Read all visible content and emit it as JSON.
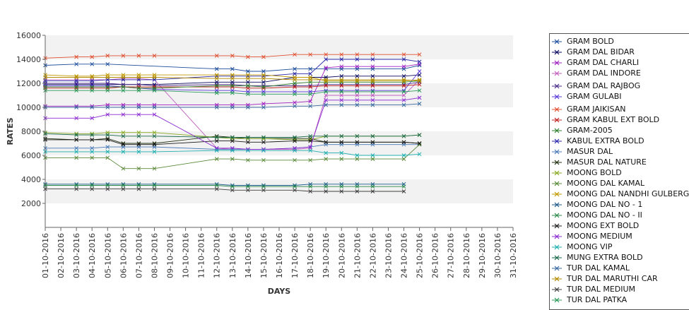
{
  "chart_data": {
    "type": "line",
    "xlabel": "DAYS",
    "ylabel": "RATES",
    "ylim": [
      0,
      16000
    ],
    "yticks": [
      2000,
      4000,
      6000,
      8000,
      10000,
      12000,
      14000,
      16000
    ],
    "grid": "alternating horizontal bands",
    "legend_position": "right",
    "x": [
      "01-10-2016",
      "02-10-2016",
      "03-10-2016",
      "04-10-2016",
      "05-10-2016",
      "06-10-2016",
      "07-10-2016",
      "08-10-2016",
      "09-10-2016",
      "10-10-2016",
      "11-10-2016",
      "12-10-2016",
      "13-10-2016",
      "14-10-2016",
      "15-10-2016",
      "16-10-2016",
      "17-10-2016",
      "18-10-2016",
      "19-10-2016",
      "20-10-2016",
      "21-10-2016",
      "22-10-2016",
      "23-10-2016",
      "24-10-2016",
      "25-10-2016",
      "26-10-2016",
      "27-10-2016",
      "28-10-2016",
      "29-10-2016",
      "30-10-2016",
      "31-10-2016"
    ],
    "series": [
      {
        "name": "GRAM BOLD",
        "color": "#1f4e9c",
        "values": [
          13500,
          null,
          13600,
          13600,
          13600,
          null,
          null,
          null,
          null,
          null,
          null,
          13200,
          13200,
          13000,
          13000,
          null,
          13200,
          13200,
          13200,
          13200,
          13200,
          13200,
          null,
          13200,
          13500,
          null,
          null,
          null,
          null,
          null,
          null
        ]
      },
      {
        "name": "GRAM DAL BIDAR",
        "color": "#0a0a60",
        "values": [
          11900,
          null,
          11900,
          11900,
          11900,
          11900,
          11900,
          11900,
          null,
          null,
          null,
          12100,
          12100,
          12100,
          12100,
          null,
          12500,
          12500,
          12500,
          12600,
          12600,
          12600,
          null,
          12600,
          12700,
          null,
          null,
          null,
          null,
          null,
          null
        ]
      },
      {
        "name": "GRAM DAL CHARLI",
        "color": "#a020c0",
        "values": [
          10100,
          null,
          10100,
          10100,
          10200,
          10200,
          10200,
          10200,
          null,
          null,
          null,
          10200,
          10200,
          10200,
          10300,
          null,
          10400,
          10500,
          13300,
          13400,
          13400,
          13400,
          null,
          13400,
          13600,
          null,
          null,
          null,
          null,
          null,
          null
        ]
      },
      {
        "name": "GRAM DAL INDORE",
        "color": "#c060c0",
        "values": [
          12300,
          null,
          12300,
          12300,
          12300,
          12400,
          12400,
          12300,
          null,
          null,
          null,
          6600,
          6500,
          6500,
          6500,
          null,
          6500,
          6600,
          11000,
          11000,
          11000,
          11000,
          null,
          11000,
          12300,
          null,
          null,
          null,
          null,
          null,
          null
        ]
      },
      {
        "name": "GRAM DAL RAJBOG",
        "color": "#4a2a8a",
        "values": [
          12000,
          null,
          12000,
          12000,
          12000,
          11900,
          11900,
          11800,
          null,
          null,
          null,
          11900,
          11900,
          11800,
          11800,
          null,
          11800,
          11800,
          11900,
          11900,
          11900,
          11900,
          null,
          11900,
          12100,
          null,
          null,
          null,
          null,
          null,
          null
        ]
      },
      {
        "name": "GRAM GULABI",
        "color": "#5a3ad8",
        "values": [
          11800,
          null,
          11800,
          11800,
          11800,
          11700,
          11600,
          11500,
          null,
          null,
          null,
          11400,
          11400,
          11300,
          11300,
          null,
          11300,
          11300,
          11400,
          11400,
          11400,
          11400,
          null,
          11400,
          13000,
          null,
          null,
          null,
          null,
          null,
          null
        ]
      },
      {
        "name": "GRAM JAIKISAN",
        "color": "#e05030",
        "values": [
          14100,
          null,
          14200,
          14200,
          14300,
          14300,
          14300,
          14300,
          null,
          null,
          null,
          14300,
          14300,
          14200,
          14200,
          null,
          14400,
          14400,
          14400,
          14400,
          14400,
          14400,
          null,
          14400,
          14400,
          null,
          null,
          null,
          null,
          null,
          null
        ]
      },
      {
        "name": "GRAM KABUL EXT BOLD",
        "color": "#c02020",
        "values": [
          11600,
          null,
          11600,
          11600,
          11600,
          11700,
          11700,
          11700,
          null,
          null,
          null,
          11700,
          11700,
          11600,
          11600,
          null,
          11700,
          11700,
          11800,
          11800,
          11800,
          11800,
          null,
          11800,
          11900,
          null,
          null,
          null,
          null,
          null,
          null
        ]
      },
      {
        "name": "GRAM-2005",
        "color": "#2f7f2f",
        "values": [
          11700,
          null,
          11700,
          11700,
          11700,
          11700,
          11600,
          11600,
          null,
          null,
          null,
          11800,
          11800,
          11800,
          11700,
          null,
          12000,
          12100,
          12100,
          12100,
          12100,
          12100,
          null,
          12100,
          12200,
          null,
          null,
          null,
          null,
          null,
          null
        ]
      },
      {
        "name": "KABUL EXTRA BOLD",
        "color": "#2a2aa8",
        "values": [
          12200,
          null,
          12200,
          12200,
          12300,
          12300,
          12300,
          12300,
          null,
          null,
          null,
          12600,
          12600,
          12600,
          12600,
          null,
          12800,
          12800,
          14000,
          14000,
          14000,
          14000,
          null,
          14000,
          13800,
          null,
          null,
          null,
          null,
          null,
          null
        ]
      },
      {
        "name": "MASUR DAL",
        "color": "#4a7ab8",
        "values": [
          6600,
          null,
          6600,
          6600,
          6700,
          6700,
          6700,
          6700,
          null,
          null,
          null,
          6500,
          6500,
          6500,
          6500,
          null,
          6600,
          6700,
          6900,
          6900,
          6900,
          6900,
          null,
          6900,
          6900,
          null,
          null,
          null,
          null,
          null,
          null
        ]
      },
      {
        "name": "MASUR DAL NATURE",
        "color": "#203010",
        "values": [
          7400,
          null,
          7300,
          7300,
          7400,
          7000,
          7000,
          7000,
          null,
          null,
          null,
          7600,
          7500,
          7400,
          7400,
          null,
          7400,
          7400,
          7100,
          7100,
          7100,
          7100,
          null,
          7100,
          7000,
          null,
          null,
          null,
          null,
          null,
          null
        ]
      },
      {
        "name": "MOONG BOLD",
        "color": "#88aa22",
        "values": [
          7900,
          null,
          7800,
          7800,
          7900,
          7900,
          7900,
          7900,
          null,
          null,
          null,
          7500,
          7400,
          7400,
          7400,
          null,
          7300,
          7300,
          7600,
          7600,
          7600,
          7600,
          null,
          7600,
          7700,
          null,
          null,
          null,
          null,
          null,
          null
        ]
      },
      {
        "name": "MOONG DAL KAMAL",
        "color": "#5a8a3a",
        "values": [
          5800,
          null,
          5800,
          5800,
          5800,
          4900,
          4900,
          4900,
          null,
          null,
          null,
          5700,
          5700,
          5600,
          5600,
          null,
          5600,
          5600,
          5700,
          5700,
          5700,
          5700,
          null,
          5700,
          6900,
          null,
          null,
          null,
          null,
          null,
          null
        ]
      },
      {
        "name": "MOONG DAL NANDHI GULBERGA",
        "color": "#c09a00",
        "values": [
          12700,
          null,
          12600,
          12600,
          12700,
          12700,
          12700,
          12700,
          null,
          null,
          null,
          12700,
          12700,
          12700,
          12700,
          null,
          12500,
          12500,
          12200,
          12200,
          12200,
          12200,
          null,
          12200,
          12300,
          null,
          null,
          null,
          null,
          null,
          null
        ]
      },
      {
        "name": "MOONG DAL NO - 1",
        "color": "#1a5a8a",
        "values": [
          3600,
          null,
          3600,
          3600,
          3600,
          3600,
          3600,
          3600,
          null,
          null,
          null,
          3600,
          3500,
          3500,
          3500,
          null,
          3500,
          3600,
          3600,
          3600,
          3600,
          3600,
          null,
          3600,
          null,
          null,
          null,
          null,
          null,
          null,
          null
        ]
      },
      {
        "name": "MOONG DAL NO - II",
        "color": "#2a8a4a",
        "values": [
          3500,
          null,
          3500,
          3500,
          3500,
          3500,
          3500,
          3500,
          null,
          null,
          null,
          3500,
          3400,
          3400,
          3400,
          null,
          3400,
          3400,
          3400,
          3400,
          3400,
          3400,
          null,
          3400,
          null,
          null,
          null,
          null,
          null,
          null,
          null
        ]
      },
      {
        "name": "MOONG EXT BOLD",
        "color": "#1a1a1a",
        "values": [
          7300,
          null,
          7300,
          7300,
          7300,
          6900,
          6900,
          6900,
          null,
          null,
          null,
          7200,
          7200,
          7100,
          7100,
          null,
          7200,
          7200,
          7100,
          7100,
          7100,
          7100,
          null,
          7100,
          7000,
          null,
          null,
          null,
          null,
          null,
          null
        ]
      },
      {
        "name": "MOONG MEDIUM",
        "color": "#8a2ad0",
        "values": [
          9100,
          null,
          9100,
          9100,
          9400,
          9400,
          9400,
          9400,
          null,
          null,
          null,
          6600,
          6600,
          6500,
          6500,
          null,
          6600,
          6700,
          10600,
          10600,
          10600,
          10600,
          null,
          10600,
          10800,
          null,
          null,
          null,
          null,
          null,
          null
        ]
      },
      {
        "name": "MOONG VIP",
        "color": "#20b0b0",
        "values": [
          6300,
          null,
          6300,
          6300,
          6300,
          6300,
          6300,
          6300,
          null,
          null,
          null,
          6400,
          6400,
          6400,
          6400,
          null,
          6400,
          6400,
          6200,
          6200,
          6000,
          6000,
          null,
          6000,
          6100,
          null,
          null,
          null,
          null,
          null,
          null
        ]
      },
      {
        "name": "MUNG EXTRA BOLD",
        "color": "#1a6a4a",
        "values": [
          7800,
          null,
          7700,
          7700,
          7700,
          7600,
          7600,
          7600,
          null,
          null,
          null,
          7500,
          7500,
          7500,
          7500,
          null,
          7500,
          7600,
          7600,
          7600,
          7600,
          7600,
          null,
          7600,
          7700,
          null,
          null,
          null,
          null,
          null,
          null
        ]
      },
      {
        "name": "TUR DAL KAMAL",
        "color": "#3a6aa0",
        "values": [
          10000,
          null,
          10000,
          10000,
          10000,
          10000,
          10000,
          10000,
          null,
          null,
          null,
          10000,
          10000,
          10000,
          10000,
          null,
          10100,
          10100,
          10200,
          10200,
          10200,
          10200,
          null,
          10200,
          10300,
          null,
          null,
          null,
          null,
          null,
          null
        ]
      },
      {
        "name": "TUR DAL MARUTHI CAR",
        "color": "#b08a00",
        "values": [
          12500,
          null,
          12500,
          12500,
          12500,
          12500,
          12500,
          12500,
          null,
          null,
          null,
          12400,
          12400,
          12400,
          12400,
          null,
          12300,
          12300,
          12300,
          12300,
          12300,
          12300,
          null,
          12300,
          12200,
          null,
          null,
          null,
          null,
          null,
          null
        ]
      },
      {
        "name": "TUR DAL MEDIUM",
        "color": "#404040",
        "values": [
          3200,
          null,
          3200,
          3200,
          3200,
          3200,
          3200,
          3200,
          null,
          null,
          null,
          3200,
          3100,
          3100,
          3100,
          null,
          3100,
          3000,
          3000,
          3000,
          3000,
          3000,
          null,
          3000,
          null,
          null,
          null,
          null,
          null,
          null,
          null
        ]
      },
      {
        "name": "TUR DAL PATKA",
        "color": "#2a9a5a",
        "values": [
          11400,
          null,
          11400,
          11400,
          11400,
          11400,
          11400,
          11400,
          null,
          null,
          null,
          11200,
          11200,
          11100,
          11100,
          null,
          11100,
          11100,
          11300,
          11300,
          11300,
          11300,
          null,
          11300,
          11400,
          null,
          null,
          null,
          null,
          null,
          null
        ]
      }
    ]
  }
}
